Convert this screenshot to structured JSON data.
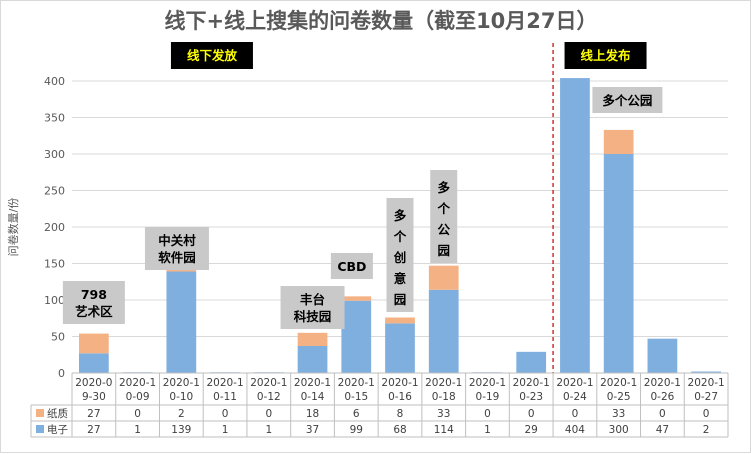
{
  "chart_data": {
    "type": "bar",
    "stacked": true,
    "title": "线下+线上搜集的问卷数量（截至10月27日）",
    "ylabel": "问卷数量/份",
    "ylim": [
      0,
      400
    ],
    "yticks": [
      0,
      50,
      100,
      150,
      200,
      250,
      300,
      350,
      400
    ],
    "categories": [
      [
        "2020-0",
        "9-30"
      ],
      [
        "2020-1",
        "0-09"
      ],
      [
        "2020-1",
        "0-10"
      ],
      [
        "2020-1",
        "0-11"
      ],
      [
        "2020-1",
        "0-12"
      ],
      [
        "2020-1",
        "0-14"
      ],
      [
        "2020-1",
        "0-15"
      ],
      [
        "2020-1",
        "0-16"
      ],
      [
        "2020-1",
        "0-18"
      ],
      [
        "2020-1",
        "0-19"
      ],
      [
        "2020-1",
        "0-23"
      ],
      [
        "2020-1",
        "0-24"
      ],
      [
        "2020-1",
        "0-25"
      ],
      [
        "2020-1",
        "0-26"
      ],
      [
        "2020-1",
        "0-27"
      ]
    ],
    "series": [
      {
        "name": "电子",
        "color": "#7fafdf",
        "values": [
          27,
          1,
          139,
          1,
          1,
          37,
          99,
          68,
          114,
          1,
          29,
          404,
          300,
          47,
          2
        ]
      },
      {
        "name": "纸质",
        "color": "#f4b183",
        "values": [
          27,
          0,
          2,
          0,
          0,
          18,
          6,
          8,
          33,
          0,
          0,
          0,
          33,
          0,
          0
        ]
      }
    ],
    "table_rows": [
      "纸质",
      "电子"
    ],
    "divider_after_index": 10,
    "phase_labels": [
      {
        "text": "线下发放",
        "category_index": 3.2
      },
      {
        "text": "线上发布",
        "category_index": 12.2
      }
    ],
    "annotations": [
      {
        "lines": [
          "798",
          "艺术区"
        ],
        "category_index": 0.5
      },
      {
        "lines": [
          "中关村",
          "软件园"
        ],
        "category_index": 2.4
      },
      {
        "lines": [
          "丰台",
          "科技园"
        ],
        "category_index": 5.5
      },
      {
        "lines": [
          "CBD"
        ],
        "category_index": 6.4
      },
      {
        "lines": [
          "多",
          "个",
          "创",
          "意",
          "园"
        ],
        "category_index": 7.5
      },
      {
        "lines": [
          "多",
          "个",
          "公",
          "园"
        ],
        "category_index": 8.5
      },
      {
        "lines": [
          "多个公园"
        ],
        "category_index": 12.7
      }
    ]
  }
}
